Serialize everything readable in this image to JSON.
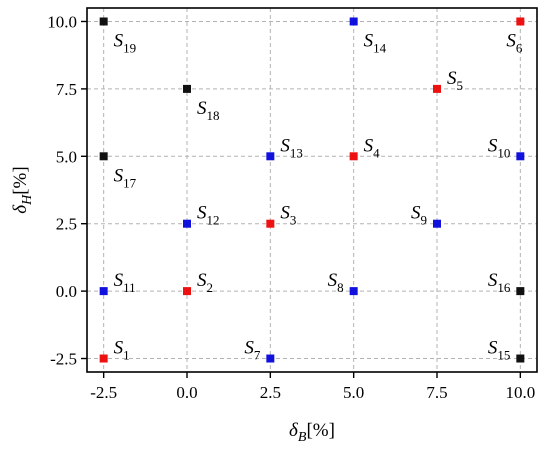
{
  "chart_data": {
    "type": "scatter",
    "xlabel": "δB[%]",
    "ylabel": "δH[%]",
    "xlim": [
      -3.0,
      10.5
    ],
    "ylim": [
      -3.0,
      10.5
    ],
    "x_ticks": [
      -2.5,
      0.0,
      2.5,
      5.0,
      7.5,
      10.0
    ],
    "y_ticks": [
      -2.5,
      0.0,
      2.5,
      5.0,
      7.5,
      10.0
    ],
    "x_tick_labels": [
      "-2.5",
      "0.0",
      "2.5",
      "5.0",
      "7.5",
      "10.0"
    ],
    "y_tick_labels": [
      "-2.5",
      "0.0",
      "2.5",
      "5.0",
      "7.5",
      "10.0"
    ],
    "grid": true,
    "colors": {
      "red": "#ee1111",
      "blue": "#1111dd",
      "black": "#111111"
    },
    "points": [
      {
        "label": "S1",
        "x": -2.5,
        "y": -2.5,
        "color": "red",
        "label_pos": "right"
      },
      {
        "label": "S2",
        "x": 0.0,
        "y": 0.0,
        "color": "red",
        "label_pos": "right"
      },
      {
        "label": "S3",
        "x": 2.5,
        "y": 2.5,
        "color": "red",
        "label_pos": "right"
      },
      {
        "label": "S4",
        "x": 5.0,
        "y": 5.0,
        "color": "red",
        "label_pos": "right"
      },
      {
        "label": "S5",
        "x": 7.5,
        "y": 7.5,
        "color": "red",
        "label_pos": "right"
      },
      {
        "label": "S6",
        "x": 10.0,
        "y": 10.0,
        "color": "red",
        "label_pos": "below-left"
      },
      {
        "label": "S7",
        "x": 2.5,
        "y": -2.5,
        "color": "blue",
        "label_pos": "left"
      },
      {
        "label": "S8",
        "x": 5.0,
        "y": 0.0,
        "color": "blue",
        "label_pos": "left"
      },
      {
        "label": "S9",
        "x": 7.5,
        "y": 2.5,
        "color": "blue",
        "label_pos": "left"
      },
      {
        "label": "S10",
        "x": 10.0,
        "y": 5.0,
        "color": "blue",
        "label_pos": "left"
      },
      {
        "label": "S11",
        "x": -2.5,
        "y": 0.0,
        "color": "blue",
        "label_pos": "right"
      },
      {
        "label": "S12",
        "x": 0.0,
        "y": 2.5,
        "color": "blue",
        "label_pos": "right"
      },
      {
        "label": "S13",
        "x": 2.5,
        "y": 5.0,
        "color": "blue",
        "label_pos": "right"
      },
      {
        "label": "S14",
        "x": 5.0,
        "y": 10.0,
        "color": "blue",
        "label_pos": "below-right"
      },
      {
        "label": "S15",
        "x": 10.0,
        "y": -2.5,
        "color": "black",
        "label_pos": "left"
      },
      {
        "label": "S16",
        "x": 10.0,
        "y": 0.0,
        "color": "black",
        "label_pos": "left"
      },
      {
        "label": "S17",
        "x": -2.5,
        "y": 5.0,
        "color": "black",
        "label_pos": "below-right"
      },
      {
        "label": "S18",
        "x": 0.0,
        "y": 7.5,
        "color": "black",
        "label_pos": "below-right"
      },
      {
        "label": "S19",
        "x": -2.5,
        "y": 10.0,
        "color": "black",
        "label_pos": "below-right"
      }
    ]
  }
}
